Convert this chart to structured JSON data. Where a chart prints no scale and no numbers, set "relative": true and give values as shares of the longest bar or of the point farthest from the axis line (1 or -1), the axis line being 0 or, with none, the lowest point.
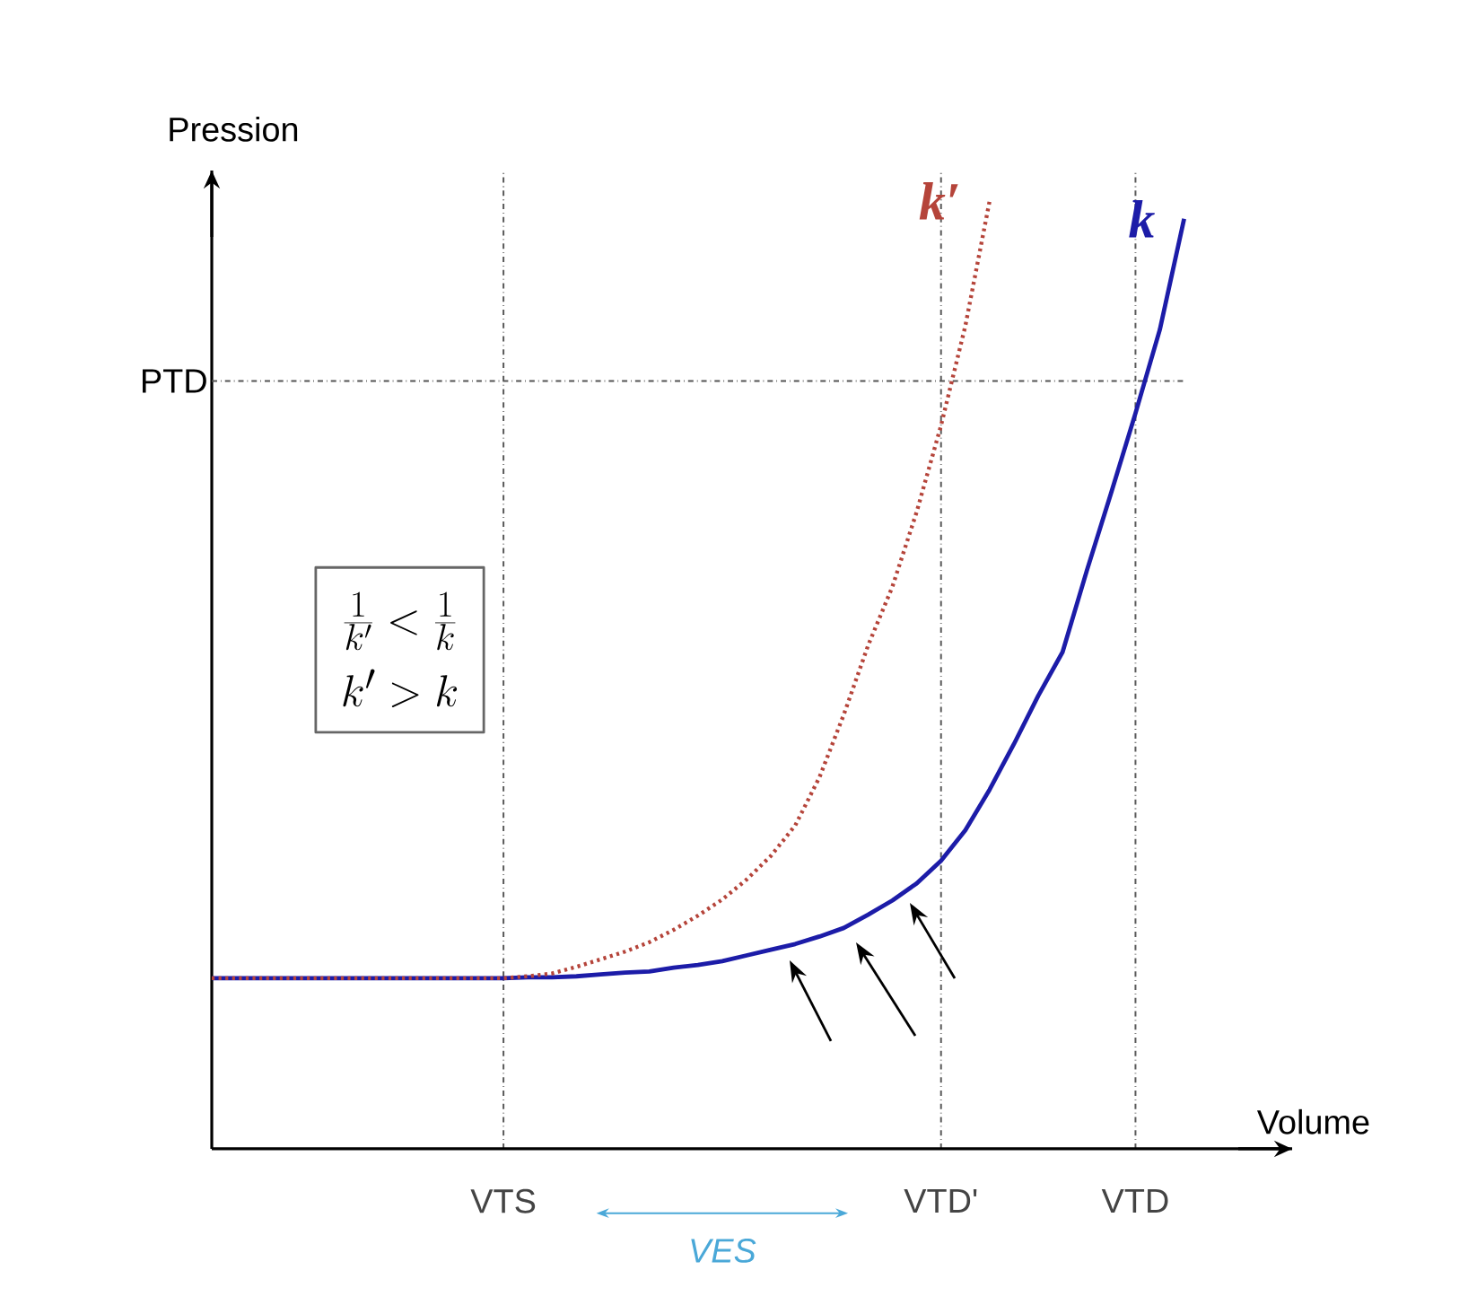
{
  "chart_data": {
    "type": "line",
    "relative": true,
    "xlabel": "Volume",
    "ylabel": "Pression",
    "tick_labels": "x",
    "grid": "x",
    "categories": [
      null,
      null,
      null,
      null,
      null,
      null,
      null,
      null,
      null,
      null,
      null,
      null,
      "VTS",
      null,
      null,
      null,
      null,
      null,
      null,
      null,
      null,
      null,
      null,
      null,
      null,
      null,
      null,
      null,
      null,
      null,
      "VTD'",
      null,
      null,
      null,
      null,
      null,
      null,
      null,
      "VTD",
      null,
      null,
      null,
      null,
      null,
      null
    ],
    "series": [
      {
        "name": "k′",
        "color": "#b5443a",
        "line_style": "dotted",
        "values": [
          0.18,
          0.18,
          0.18,
          0.18,
          0.18,
          0.18,
          0.18,
          0.18,
          0.18,
          0.18,
          0.18,
          0.18,
          0.18,
          0.182,
          0.185,
          0.192,
          0.2,
          0.208,
          0.218,
          0.231,
          0.246,
          0.263,
          0.284,
          0.309,
          0.341,
          0.392,
          0.458,
          0.531,
          0.593,
          0.672,
          0.763,
          0.868,
          1.0,
          null,
          null,
          null,
          null,
          null,
          null,
          null,
          null,
          null,
          null,
          null,
          null
        ]
      },
      {
        "name": "k",
        "color": "#1c1ca8",
        "line_style": "solid",
        "values": [
          0.18,
          0.18,
          0.18,
          0.18,
          0.18,
          0.18,
          0.18,
          0.18,
          0.18,
          0.18,
          0.18,
          0.18,
          0.18,
          0.181,
          0.181,
          0.182,
          0.184,
          0.186,
          0.187,
          0.191,
          0.194,
          0.198,
          0.204,
          0.21,
          0.216,
          0.224,
          0.233,
          0.247,
          0.262,
          0.28,
          0.304,
          0.336,
          0.379,
          0.427,
          0.478,
          0.524,
          0.61,
          0.692,
          0.776,
          0.864,
          0.981,
          null,
          null,
          null,
          null
        ]
      }
    ],
    "ref_lines": [
      {
        "axis": "y",
        "value": 0.81,
        "label": "PTD",
        "color": "#555555"
      }
    ],
    "annotations": [
      "\\frac{1}{k'} < \\frac{1}{k}",
      "k' > k",
      "VES"
    ]
  }
}
